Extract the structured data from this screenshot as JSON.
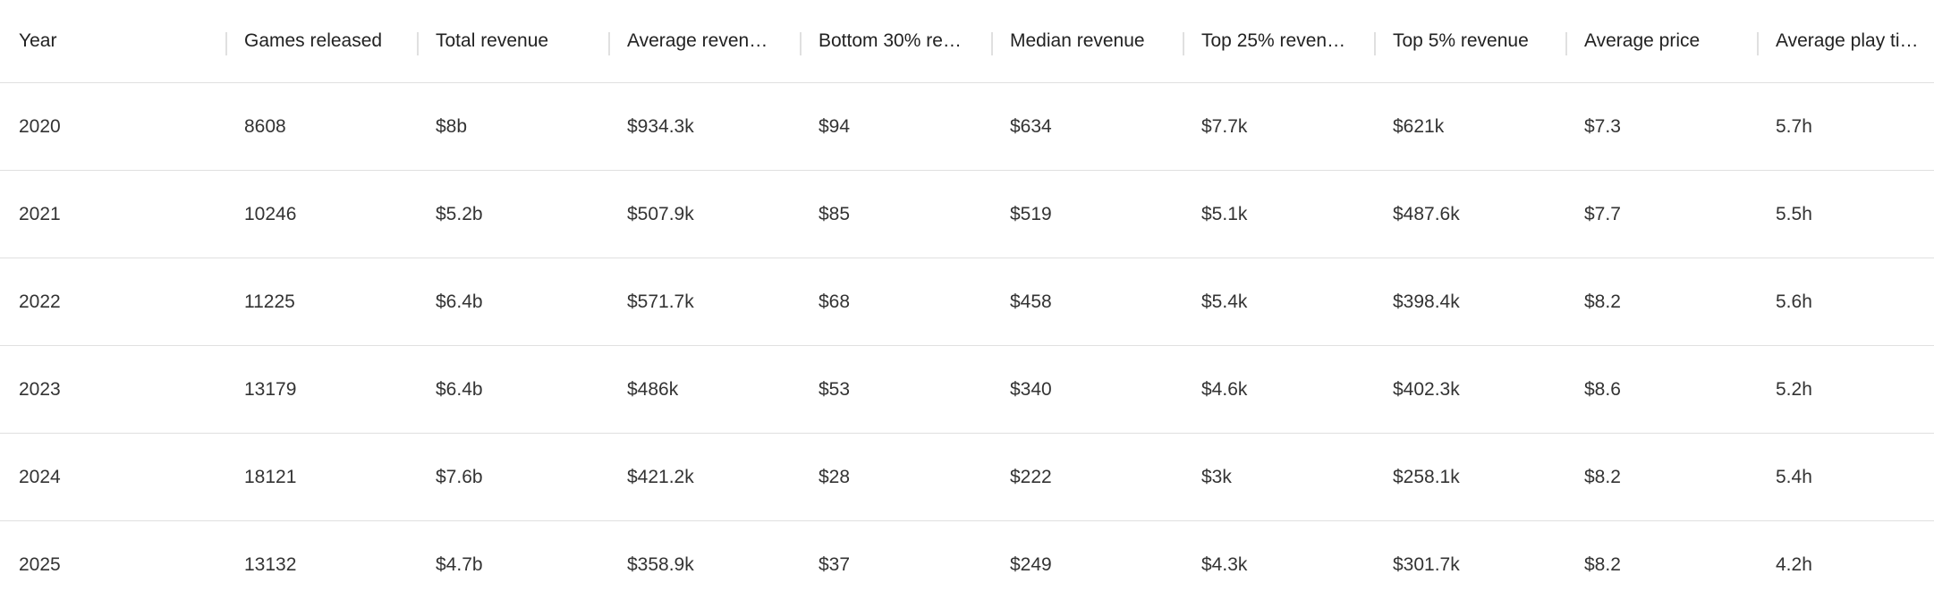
{
  "table": {
    "header": [
      "Year",
      "Games released",
      "Total revenue",
      "Average reven…",
      "Bottom 30% re…",
      "Median revenue",
      "Top 25% reven…",
      "Top 5% revenue",
      "Average price",
      "Average play ti…"
    ],
    "rows": [
      [
        "2020",
        "8608",
        "$8b",
        "$934.3k",
        "$94",
        "$634",
        "$7.7k",
        "$621k",
        "$7.3",
        "5.7h"
      ],
      [
        "2021",
        "10246",
        "$5.2b",
        "$507.9k",
        "$85",
        "$519",
        "$5.1k",
        "$487.6k",
        "$7.7",
        "5.5h"
      ],
      [
        "2022",
        "11225",
        "$6.4b",
        "$571.7k",
        "$68",
        "$458",
        "$5.4k",
        "$398.4k",
        "$8.2",
        "5.6h"
      ],
      [
        "2023",
        "13179",
        "$6.4b",
        "$486k",
        "$53",
        "$340",
        "$4.6k",
        "$402.3k",
        "$8.6",
        "5.2h"
      ],
      [
        "2024",
        "18121",
        "$7.6b",
        "$421.2k",
        "$28",
        "$222",
        "$3k",
        "$258.1k",
        "$8.2",
        "5.4h"
      ],
      [
        "2025",
        "13132",
        "$4.7b",
        "$358.9k",
        "$37",
        "$249",
        "$4.3k",
        "$301.7k",
        "$8.2",
        "4.2h"
      ]
    ]
  }
}
